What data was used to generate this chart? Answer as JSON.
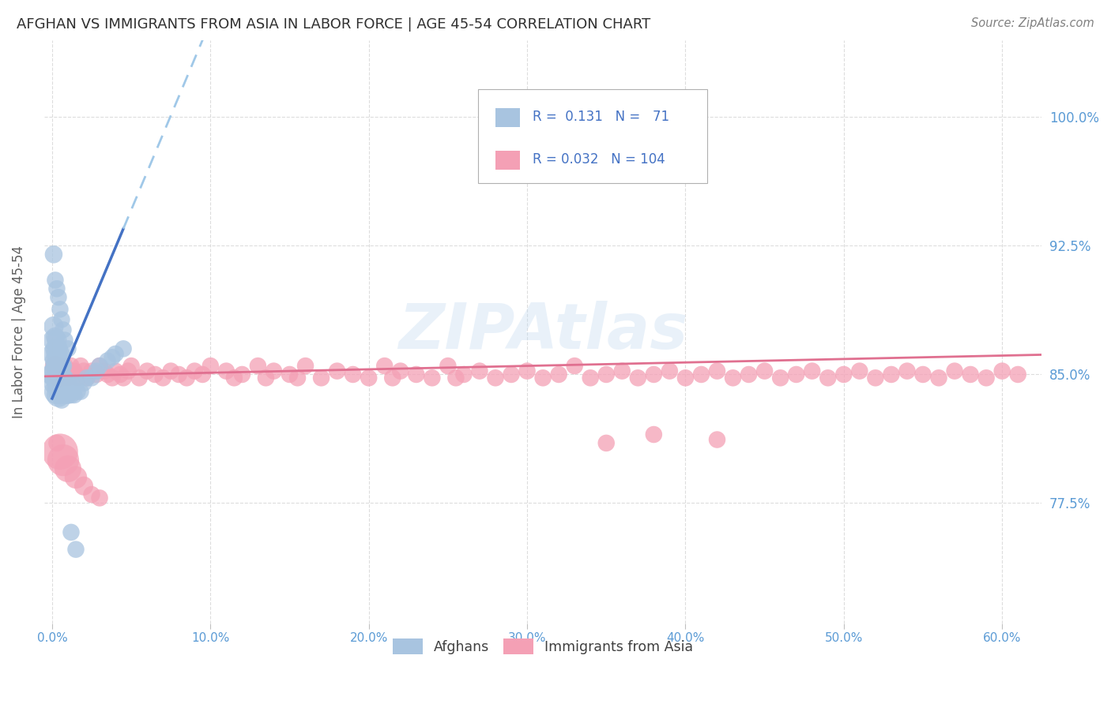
{
  "title": "AFGHAN VS IMMIGRANTS FROM ASIA IN LABOR FORCE | AGE 45-54 CORRELATION CHART",
  "source": "Source: ZipAtlas.com",
  "xlabel_ticks": [
    "0.0%",
    "10.0%",
    "20.0%",
    "30.0%",
    "40.0%",
    "50.0%",
    "60.0%"
  ],
  "xlabel_vals": [
    0.0,
    0.1,
    0.2,
    0.3,
    0.4,
    0.5,
    0.6
  ],
  "ylabel_ticks": [
    "77.5%",
    "85.0%",
    "92.5%",
    "100.0%"
  ],
  "ylabel_vals": [
    0.775,
    0.85,
    0.925,
    1.0
  ],
  "ylim": [
    0.705,
    1.045
  ],
  "xlim": [
    -0.005,
    0.625
  ],
  "watermark": "ZIPAtlas",
  "color_afghan": "#a8c4e0",
  "color_immig": "#f4a0b5",
  "color_line_afghan": "#4472c4",
  "color_line_immig": "#e07090",
  "color_trendline_dashed": "#a0c8e8",
  "color_axis_labels": "#5b9bd5",
  "color_title": "#404040",
  "ylabel_label": "In Labor Force | Age 45-54",
  "afghan_x": [
    0.001,
    0.001,
    0.001,
    0.001,
    0.002,
    0.002,
    0.002,
    0.002,
    0.002,
    0.003,
    0.003,
    0.003,
    0.003,
    0.003,
    0.003,
    0.003,
    0.004,
    0.004,
    0.004,
    0.004,
    0.004,
    0.004,
    0.004,
    0.005,
    0.005,
    0.005,
    0.005,
    0.005,
    0.005,
    0.005,
    0.006,
    0.006,
    0.006,
    0.006,
    0.007,
    0.007,
    0.007,
    0.008,
    0.008,
    0.009,
    0.009,
    0.01,
    0.01,
    0.011,
    0.012,
    0.012,
    0.013,
    0.014,
    0.015,
    0.016,
    0.018,
    0.02,
    0.022,
    0.025,
    0.028,
    0.03,
    0.035,
    0.038,
    0.04,
    0.045,
    0.001,
    0.002,
    0.003,
    0.004,
    0.005,
    0.006,
    0.007,
    0.008,
    0.01,
    0.012,
    0.015
  ],
  "afghan_y": [
    0.85,
    0.862,
    0.87,
    0.878,
    0.845,
    0.852,
    0.858,
    0.865,
    0.872,
    0.84,
    0.848,
    0.855,
    0.862,
    0.87,
    0.842,
    0.85,
    0.838,
    0.845,
    0.852,
    0.858,
    0.865,
    0.842,
    0.848,
    0.84,
    0.848,
    0.855,
    0.862,
    0.838,
    0.845,
    0.852,
    0.84,
    0.848,
    0.855,
    0.835,
    0.84,
    0.848,
    0.855,
    0.84,
    0.848,
    0.838,
    0.845,
    0.838,
    0.845,
    0.84,
    0.838,
    0.845,
    0.84,
    0.838,
    0.845,
    0.84,
    0.84,
    0.845,
    0.848,
    0.848,
    0.852,
    0.855,
    0.858,
    0.86,
    0.862,
    0.865,
    0.92,
    0.905,
    0.9,
    0.895,
    0.888,
    0.882,
    0.876,
    0.87,
    0.865,
    0.758,
    0.748
  ],
  "afghan_sizes": [
    40,
    35,
    32,
    28,
    38,
    34,
    30,
    28,
    25,
    45,
    40,
    36,
    32,
    28,
    25,
    22,
    40,
    36,
    32,
    28,
    25,
    22,
    20,
    38,
    34,
    30,
    28,
    25,
    22,
    20,
    30,
    26,
    23,
    20,
    28,
    25,
    22,
    25,
    22,
    22,
    20,
    22,
    20,
    20,
    20,
    20,
    20,
    20,
    20,
    20,
    20,
    20,
    20,
    20,
    20,
    20,
    20,
    20,
    20,
    20,
    22,
    20,
    20,
    20,
    20,
    20,
    20,
    20,
    20,
    20,
    20
  ],
  "immig_x": [
    0.002,
    0.003,
    0.004,
    0.005,
    0.006,
    0.007,
    0.008,
    0.009,
    0.01,
    0.012,
    0.014,
    0.015,
    0.016,
    0.018,
    0.02,
    0.022,
    0.025,
    0.028,
    0.03,
    0.033,
    0.035,
    0.038,
    0.04,
    0.043,
    0.045,
    0.048,
    0.05,
    0.055,
    0.06,
    0.065,
    0.07,
    0.075,
    0.08,
    0.085,
    0.09,
    0.095,
    0.1,
    0.11,
    0.115,
    0.12,
    0.13,
    0.135,
    0.14,
    0.15,
    0.155,
    0.16,
    0.17,
    0.18,
    0.19,
    0.2,
    0.21,
    0.215,
    0.22,
    0.23,
    0.24,
    0.25,
    0.255,
    0.26,
    0.27,
    0.28,
    0.29,
    0.3,
    0.31,
    0.32,
    0.33,
    0.34,
    0.35,
    0.36,
    0.37,
    0.38,
    0.39,
    0.4,
    0.41,
    0.42,
    0.43,
    0.44,
    0.45,
    0.46,
    0.47,
    0.48,
    0.49,
    0.5,
    0.51,
    0.52,
    0.53,
    0.54,
    0.55,
    0.56,
    0.57,
    0.58,
    0.59,
    0.6,
    0.61,
    0.003,
    0.005,
    0.007,
    0.01,
    0.015,
    0.02,
    0.025,
    0.03,
    0.35,
    0.38,
    0.42
  ],
  "immig_y": [
    0.855,
    0.85,
    0.848,
    0.855,
    0.852,
    0.848,
    0.855,
    0.85,
    0.848,
    0.855,
    0.852,
    0.85,
    0.848,
    0.855,
    0.852,
    0.848,
    0.852,
    0.85,
    0.855,
    0.852,
    0.85,
    0.848,
    0.852,
    0.85,
    0.848,
    0.852,
    0.855,
    0.848,
    0.852,
    0.85,
    0.848,
    0.852,
    0.85,
    0.848,
    0.852,
    0.85,
    0.855,
    0.852,
    0.848,
    0.85,
    0.855,
    0.848,
    0.852,
    0.85,
    0.848,
    0.855,
    0.848,
    0.852,
    0.85,
    0.848,
    0.855,
    0.848,
    0.852,
    0.85,
    0.848,
    0.855,
    0.848,
    0.85,
    0.852,
    0.848,
    0.85,
    0.852,
    0.848,
    0.85,
    0.855,
    0.848,
    0.85,
    0.852,
    0.848,
    0.85,
    0.852,
    0.848,
    0.85,
    0.852,
    0.848,
    0.85,
    0.852,
    0.848,
    0.85,
    0.852,
    0.848,
    0.85,
    0.852,
    0.848,
    0.85,
    0.852,
    0.85,
    0.848,
    0.852,
    0.85,
    0.848,
    0.852,
    0.85,
    0.81,
    0.805,
    0.8,
    0.795,
    0.79,
    0.785,
    0.78,
    0.778,
    0.81,
    0.815,
    0.812
  ],
  "immig_sizes": [
    30,
    28,
    25,
    22,
    20,
    20,
    20,
    20,
    20,
    20,
    20,
    20,
    20,
    20,
    20,
    20,
    20,
    20,
    20,
    20,
    20,
    20,
    20,
    20,
    20,
    20,
    20,
    20,
    20,
    20,
    20,
    20,
    20,
    20,
    20,
    20,
    20,
    20,
    20,
    20,
    20,
    20,
    20,
    20,
    20,
    20,
    20,
    20,
    20,
    20,
    20,
    20,
    20,
    20,
    20,
    20,
    20,
    20,
    20,
    20,
    20,
    20,
    20,
    20,
    20,
    20,
    20,
    20,
    20,
    20,
    20,
    20,
    20,
    20,
    20,
    20,
    20,
    20,
    20,
    20,
    20,
    20,
    20,
    20,
    20,
    20,
    20,
    20,
    20,
    20,
    20,
    20,
    20,
    20,
    90,
    70,
    50,
    35,
    25,
    20,
    20,
    20,
    20,
    20
  ],
  "trend_slope_afghan": 2.2,
  "trend_intercept_afghan": 0.836,
  "trend_slope_immig": 0.02,
  "trend_intercept_immig": 0.849
}
